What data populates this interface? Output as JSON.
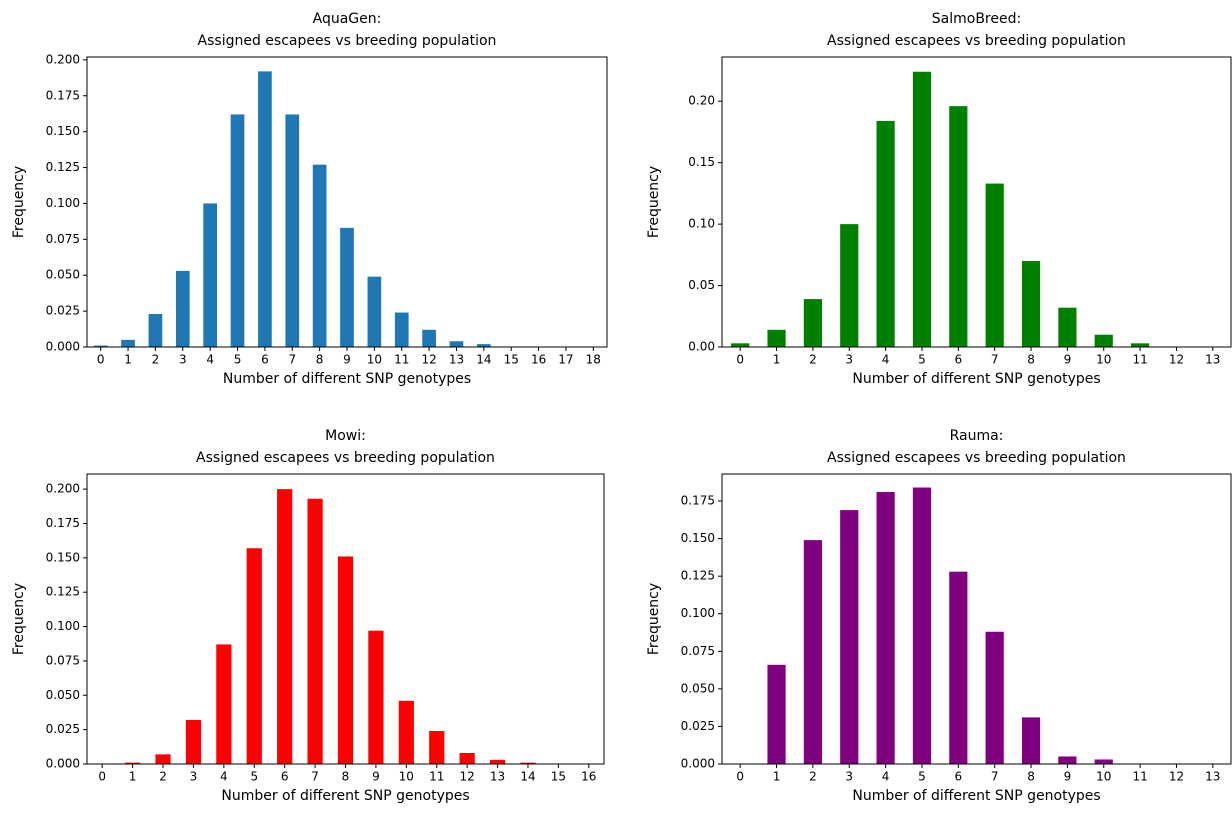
{
  "chart_data": [
    {
      "type": "bar",
      "title": "AquaGen:",
      "subtitle": "Assigned escapees vs breeding population",
      "x_label": "Number of different SNP genotypes",
      "y_label": "Frequency",
      "color": "#1f77b4",
      "categories": [
        "0",
        "1",
        "2",
        "3",
        "4",
        "5",
        "6",
        "7",
        "8",
        "9",
        "10",
        "11",
        "12",
        "13",
        "14",
        "15",
        "16",
        "17",
        "18"
      ],
      "values": [
        0.001,
        0.005,
        0.023,
        0.053,
        0.1,
        0.162,
        0.192,
        0.162,
        0.127,
        0.083,
        0.049,
        0.024,
        0.012,
        0.004,
        0.002,
        0,
        0,
        0,
        0
      ],
      "ylim": [
        0,
        0.202
      ],
      "yticks": [
        {
          "value": 0,
          "label": "0.000"
        },
        {
          "value": 0.025,
          "label": "0.025"
        },
        {
          "value": 0.05,
          "label": "0.050"
        },
        {
          "value": 0.075,
          "label": "0.075"
        },
        {
          "value": 0.1,
          "label": "0.100"
        },
        {
          "value": 0.125,
          "label": "0.125"
        },
        {
          "value": 0.15,
          "label": "0.150"
        },
        {
          "value": 0.175,
          "label": "0.175"
        },
        {
          "value": 0.2,
          "label": "0.200"
        }
      ]
    },
    {
      "type": "bar",
      "title": "SalmoBreed:",
      "subtitle": "Assigned escapees vs breeding population",
      "x_label": "Number of different SNP genotypes",
      "y_label": "Frequency",
      "color": "#008000",
      "categories": [
        "0",
        "1",
        "2",
        "3",
        "4",
        "5",
        "6",
        "7",
        "8",
        "9",
        "10",
        "11",
        "12",
        "13"
      ],
      "values": [
        0.003,
        0.014,
        0.039,
        0.1,
        0.184,
        0.224,
        0.196,
        0.133,
        0.07,
        0.032,
        0.01,
        0.003,
        0,
        0
      ],
      "ylim": [
        0,
        0.236
      ],
      "yticks": [
        {
          "value": 0,
          "label": "0.00"
        },
        {
          "value": 0.05,
          "label": "0.05"
        },
        {
          "value": 0.1,
          "label": "0.10"
        },
        {
          "value": 0.15,
          "label": "0.15"
        },
        {
          "value": 0.2,
          "label": "0.20"
        }
      ]
    },
    {
      "type": "bar",
      "title": "Mowi:",
      "subtitle": "Assigned escapees vs breeding population",
      "x_label": "Number of different SNP genotypes",
      "y_label": "Frequency",
      "color": "#ff0000",
      "categories": [
        "0",
        "1",
        "2",
        "3",
        "4",
        "5",
        "6",
        "7",
        "8",
        "9",
        "10",
        "11",
        "12",
        "13",
        "14",
        "15",
        "16"
      ],
      "values": [
        0,
        0.001,
        0.007,
        0.032,
        0.087,
        0.157,
        0.2,
        0.193,
        0.151,
        0.097,
        0.046,
        0.024,
        0.008,
        0.003,
        0.001,
        0,
        0
      ],
      "ylim": [
        0,
        0.211
      ],
      "yticks": [
        {
          "value": 0,
          "label": "0.000"
        },
        {
          "value": 0.025,
          "label": "0.025"
        },
        {
          "value": 0.05,
          "label": "0.050"
        },
        {
          "value": 0.075,
          "label": "0.075"
        },
        {
          "value": 0.1,
          "label": "0.100"
        },
        {
          "value": 0.125,
          "label": "0.125"
        },
        {
          "value": 0.15,
          "label": "0.150"
        },
        {
          "value": 0.175,
          "label": "0.175"
        },
        {
          "value": 0.2,
          "label": "0.200"
        }
      ]
    },
    {
      "type": "bar",
      "title": "Rauma:",
      "subtitle": "Assigned escapees vs breeding population",
      "x_label": "Number of different SNP genotypes",
      "y_label": "Frequency",
      "color": "#800080",
      "categories": [
        "0",
        "1",
        "2",
        "3",
        "4",
        "5",
        "6",
        "7",
        "8",
        "9",
        "10",
        "11",
        "12",
        "13"
      ],
      "values": [
        0,
        0.066,
        0.149,
        0.169,
        0.181,
        0.184,
        0.128,
        0.088,
        0.031,
        0.005,
        0.003,
        0,
        0,
        0
      ],
      "ylim": [
        0,
        0.193
      ],
      "yticks": [
        {
          "value": 0,
          "label": "0.000"
        },
        {
          "value": 0.025,
          "label": "0.025"
        },
        {
          "value": 0.05,
          "label": "0.050"
        },
        {
          "value": 0.075,
          "label": "0.075"
        },
        {
          "value": 0.1,
          "label": "0.100"
        },
        {
          "value": 0.125,
          "label": "0.125"
        },
        {
          "value": 0.15,
          "label": "0.150"
        },
        {
          "value": 0.175,
          "label": "0.175"
        }
      ]
    }
  ]
}
